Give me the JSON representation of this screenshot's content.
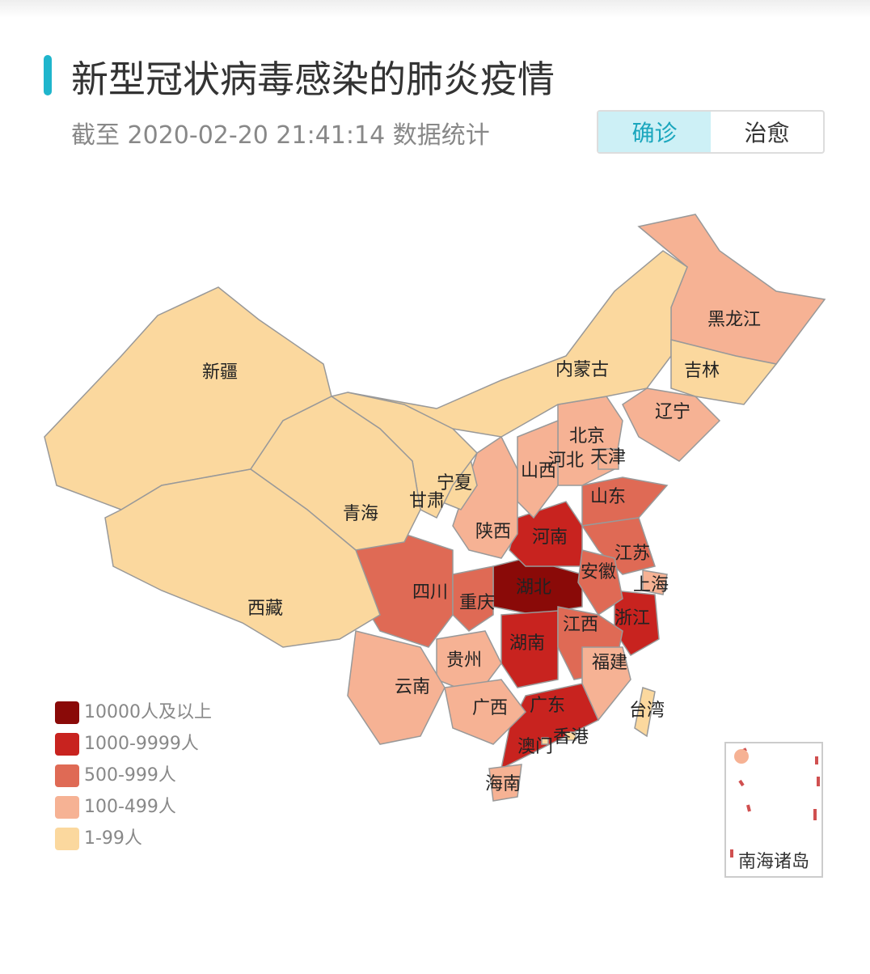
{
  "header": {
    "title": "新型冠状病毒感染的肺炎疫情",
    "subtitle": "截至 2020-02-20 21:41:14 数据统计"
  },
  "tabs": [
    {
      "label": "确诊",
      "active": true
    },
    {
      "label": "治愈",
      "active": false
    }
  ],
  "legend": {
    "items": [
      {
        "label": "10000人及以上",
        "color": "#8a0a08",
        "provinces": [
          "湖北"
        ]
      },
      {
        "label": "1000-9999人",
        "color": "#c8231f",
        "provinces": [
          "河南",
          "湖南",
          "广东",
          "浙江"
        ]
      },
      {
        "label": "500-999人",
        "color": "#df6a55",
        "provinces": [
          "山东",
          "江苏",
          "安徽",
          "四川",
          "重庆",
          "江西"
        ]
      },
      {
        "label": "100-499人",
        "color": "#f6b294",
        "provinces": [
          "黑龙江",
          "辽宁",
          "北京",
          "河北",
          "天津",
          "山西",
          "陕西",
          "上海",
          "贵州",
          "云南",
          "广西",
          "福建",
          "海南"
        ]
      },
      {
        "label": "1-99人",
        "color": "#fbd89e",
        "provinces": [
          "新疆",
          "内蒙古",
          "吉林",
          "宁夏",
          "甘肃",
          "青海",
          "西藏",
          "台湾",
          "香港",
          "澳门"
        ]
      }
    ]
  },
  "inset": {
    "label": "南海诸岛"
  }
}
